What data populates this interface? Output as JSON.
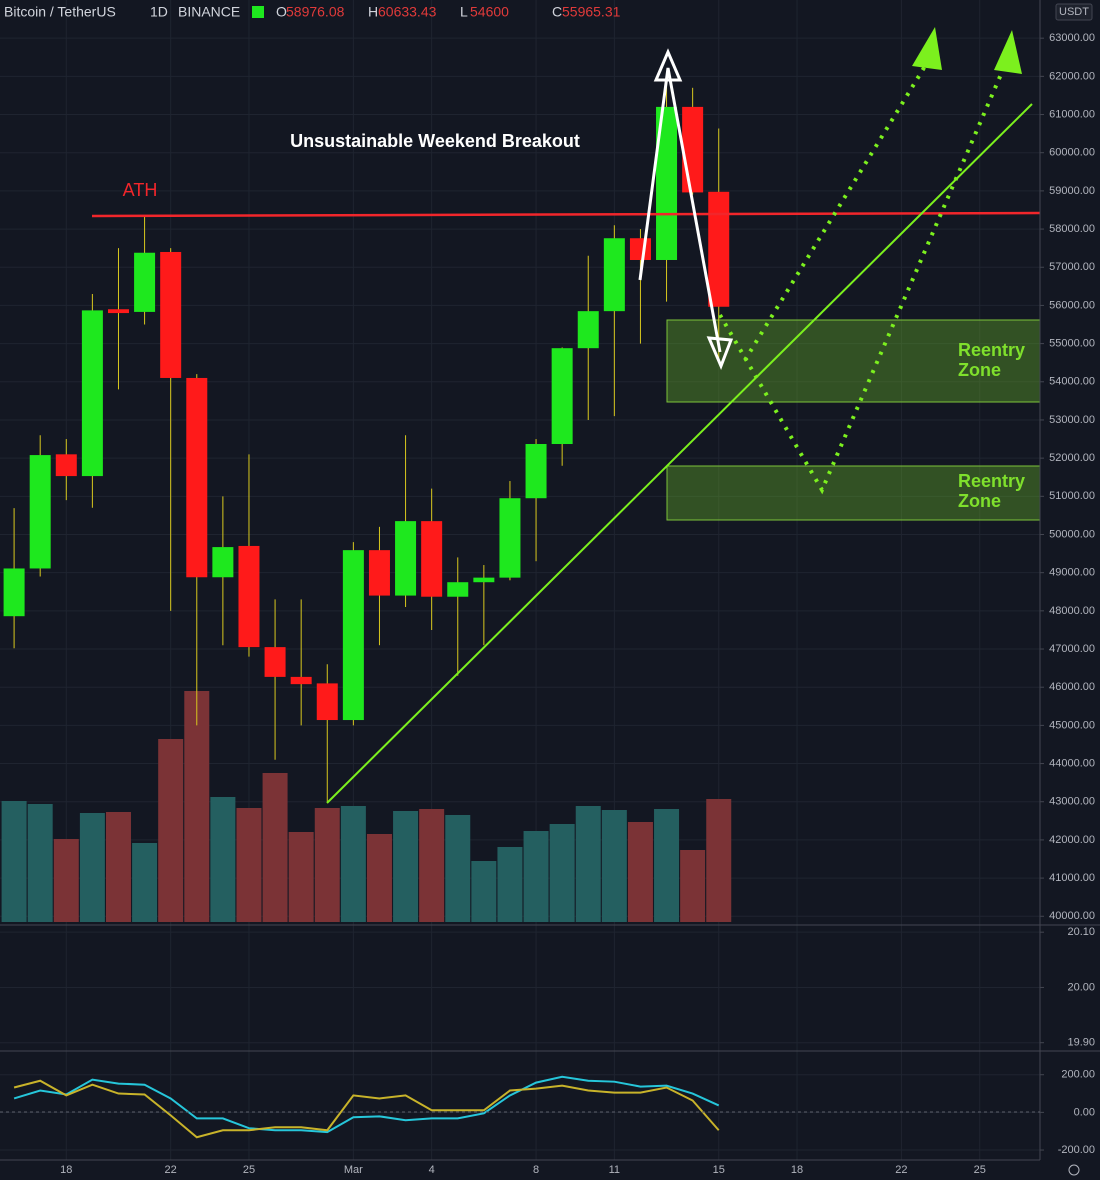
{
  "chart_data": {
    "type": "candlestick",
    "symbol": "Bitcoin / TetherUS",
    "interval": "1D",
    "exchange": "BINANCE",
    "ohlc_labels": [
      "O",
      "H",
      "L",
      "C"
    ],
    "currency": "USDT",
    "open": [
      47860,
      49110,
      52100,
      51530,
      55900,
      55830,
      57400,
      54100,
      48880,
      49700,
      47050,
      46270,
      46100,
      45140,
      49590,
      48400,
      50350,
      48370,
      48750,
      48870,
      50950,
      52370,
      54880,
      55850,
      57760,
      57190,
      61200,
      58976.08
    ],
    "high": [
      50690,
      52600,
      52500,
      56300,
      57500,
      58350,
      57500,
      54200,
      51000,
      52100,
      48300,
      48300,
      46600,
      49800,
      50200,
      52600,
      51200,
      49400,
      49200,
      51400,
      52500,
      54900,
      57300,
      58100,
      58000,
      61800,
      61700,
      60633.43
    ],
    "low": [
      47020,
      48900,
      50900,
      50700,
      53800,
      55500,
      48000,
      45000,
      47100,
      46800,
      44100,
      45000,
      43000,
      45000,
      47100,
      48100,
      47500,
      46300,
      47100,
      48800,
      49300,
      51800,
      53000,
      53100,
      55000,
      56100,
      58900,
      54600
    ],
    "close": [
      49110,
      52080,
      51530,
      55870,
      55800,
      57380,
      54100,
      48880,
      49670,
      47050,
      46270,
      46080,
      45140,
      49590,
      48400,
      50350,
      48370,
      48750,
      48870,
      50950,
      52370,
      54880,
      55850,
      57760,
      57190,
      61200,
      58960,
      55965.31
    ],
    "volume": [
      60500,
      59000,
      41500,
      54500,
      55000,
      39500,
      91500,
      115500,
      62500,
      57000,
      74500,
      45000,
      57000,
      58000,
      44000,
      55500,
      56500,
      53500,
      30500,
      37500,
      45500,
      49000,
      58000,
      56000,
      50000,
      56500,
      36000,
      61500
    ],
    "up_color": "#1ee81e",
    "down_color": "#ff1a1a",
    "wick_color": "#d8c81e",
    "volume_up_color": "#245f60",
    "volume_down_color": "#7b3336",
    "xlim": [
      -0.54,
      39.31
    ],
    "xticks": [
      {
        "value": 2,
        "label": "18"
      },
      {
        "value": 6,
        "label": "22"
      },
      {
        "value": 9,
        "label": "25"
      },
      {
        "value": 13,
        "label": "Mar"
      },
      {
        "value": 16,
        "label": "4"
      },
      {
        "value": 20,
        "label": "8"
      },
      {
        "value": 23,
        "label": "11"
      },
      {
        "value": 27,
        "label": "15"
      },
      {
        "value": 30,
        "label": "18"
      },
      {
        "value": 34,
        "label": "22"
      },
      {
        "value": 37,
        "label": "25"
      }
    ],
    "ylim": [
      39850,
      64000
    ],
    "yticks": [
      {
        "value": 40000,
        "label": "40000.00"
      },
      {
        "value": 41000,
        "label": "41000.00"
      },
      {
        "value": 42000,
        "label": "42000.00"
      },
      {
        "value": 43000,
        "label": "43000.00"
      },
      {
        "value": 44000,
        "label": "44000.00"
      },
      {
        "value": 45000,
        "label": "45000.00"
      },
      {
        "value": 46000,
        "label": "46000.00"
      },
      {
        "value": 47000,
        "label": "47000.00"
      },
      {
        "value": 48000,
        "label": "48000.00"
      },
      {
        "value": 49000,
        "label": "49000.00"
      },
      {
        "value": 50000,
        "label": "50000.00"
      },
      {
        "value": 51000,
        "label": "51000.00"
      },
      {
        "value": 52000,
        "label": "52000.00"
      },
      {
        "value": 53000,
        "label": "53000.00"
      },
      {
        "value": 54000,
        "label": "54000.00"
      },
      {
        "value": 55000,
        "label": "55000.00"
      },
      {
        "value": 56000,
        "label": "56000.00"
      },
      {
        "value": 57000,
        "label": "57000.00"
      },
      {
        "value": 58000,
        "label": "58000.00"
      },
      {
        "value": 59000,
        "label": "59000.00"
      },
      {
        "value": 60000,
        "label": "60000.00"
      },
      {
        "value": 61000,
        "label": "61000.00"
      },
      {
        "value": 62000,
        "label": "62000.00"
      },
      {
        "value": 63000,
        "label": "63000.00"
      }
    ],
    "mid_ylim": [
      19.885,
      20.113
    ],
    "mid_yticks": [
      {
        "value": 20.1,
        "label": "20.10"
      },
      {
        "value": 20.0,
        "label": "20.00"
      },
      {
        "value": 19.9,
        "label": "19.90"
      }
    ],
    "osc_ylim": [
      -253,
      326
    ],
    "osc_yticks": [
      {
        "value": 200,
        "label": "200.00"
      },
      {
        "value": 0,
        "label": "0.00"
      },
      {
        "value": -200,
        "label": "-200.00"
      }
    ],
    "oscillator": [
      {
        "color": "#26c6da",
        "values": [
          74,
          116,
          95,
          174,
          153,
          147,
          74,
          -32,
          -32,
          -84,
          -95,
          -95,
          -105,
          -26,
          -21,
          -42,
          -32,
          -32,
          -5,
          90,
          158,
          189,
          168,
          163,
          137,
          142,
          100,
          37
        ]
      },
      {
        "color": "#c8b32a",
        "values": [
          132,
          168,
          90,
          147,
          100,
          95,
          -16,
          -132,
          -95,
          -95,
          -79,
          -79,
          -95,
          90,
          74,
          90,
          11,
          11,
          11,
          116,
          126,
          142,
          116,
          105,
          105,
          132,
          63,
          -95
        ]
      }
    ],
    "annotations": {
      "breakout": "Unsustainable Weekend Breakout",
      "ath": "ATH",
      "zones": [
        [
          "Reentry",
          "Zone"
        ],
        [
          "Reentry",
          "Zone"
        ]
      ]
    }
  }
}
